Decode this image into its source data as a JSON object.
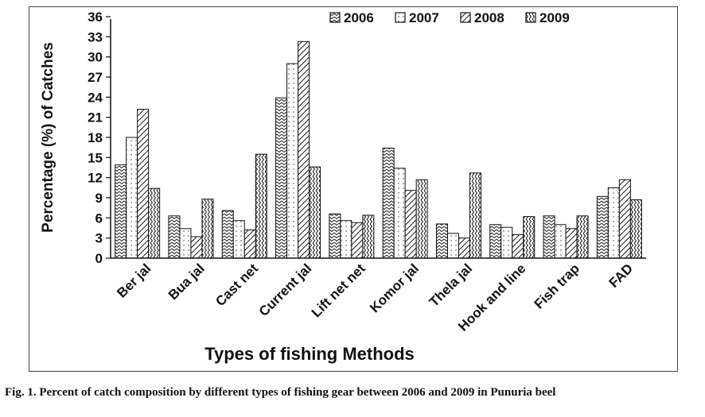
{
  "chart_data": {
    "type": "bar",
    "title": "",
    "xlabel": "Types of fishing Methods",
    "ylabel": "Percentage (%) of Catches",
    "ylim": [
      0,
      36
    ],
    "yticks": [
      0,
      3,
      6,
      9,
      12,
      15,
      18,
      21,
      24,
      27,
      30,
      33,
      36
    ],
    "grid": false,
    "legend_position": "top-right",
    "categories": [
      "Ber jal",
      "Bua jal",
      "Cast net",
      "Current jal",
      "Lift net net",
      "Komor jal",
      "Thela jal",
      "Hook and line",
      "Fish trap",
      "FAD"
    ],
    "series": [
      {
        "name": "2006",
        "values": [
          13.9,
          6.3,
          7.1,
          23.9,
          6.6,
          16.4,
          5.1,
          5.0,
          6.3,
          9.2
        ]
      },
      {
        "name": "2007",
        "values": [
          18.0,
          4.4,
          5.6,
          29.0,
          5.6,
          13.4,
          3.7,
          4.6,
          5.0,
          10.5
        ]
      },
      {
        "name": "2008",
        "values": [
          22.2,
          3.2,
          4.2,
          32.3,
          5.3,
          10.1,
          3.0,
          3.5,
          4.4,
          11.7
        ]
      },
      {
        "name": "2009",
        "values": [
          10.4,
          8.8,
          15.5,
          13.6,
          6.4,
          11.7,
          12.7,
          6.2,
          6.3,
          8.7
        ]
      }
    ],
    "colors": {
      "axis": "#111111",
      "bar_fill": "#ffffff",
      "ink": "#1a1a1a"
    }
  },
  "caption": "Fig. 1. Percent of catch composition by different types of fishing gear between 2006 and 2009 in Punuria beel"
}
